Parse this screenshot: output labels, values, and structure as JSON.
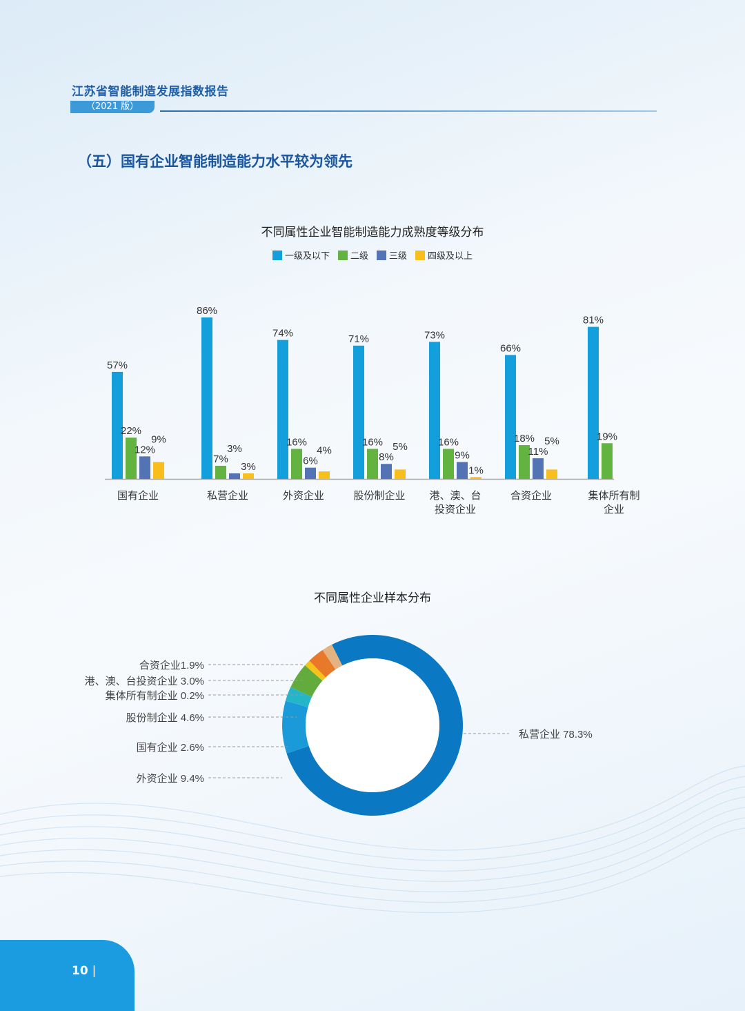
{
  "header": {
    "report_title": "江苏省智能制造发展指数报告",
    "edition": "（2021 版）"
  },
  "section_title": "（五）国有企业智能制造能力水平较为领先",
  "page_number": "10",
  "page_number_sep": "|",
  "chart_data": [
    {
      "type": "bar",
      "title": "不同属性企业智能制造能力成熟度等级分布",
      "legend_position": "top",
      "categories": [
        [
          "国有企业"
        ],
        [
          "私营企业"
        ],
        [
          "外资企业"
        ],
        [
          "股份制企业"
        ],
        [
          "港、澳、台",
          "投资企业"
        ],
        [
          "合资企业"
        ],
        [
          "集体所有制",
          "企业"
        ]
      ],
      "series": [
        {
          "name": "一级及以下",
          "color": "#139fdb",
          "values": [
            57,
            86,
            74,
            71,
            73,
            66,
            81
          ]
        },
        {
          "name": "二级",
          "color": "#62b33f",
          "values": [
            22,
            7,
            16,
            16,
            16,
            18,
            19
          ]
        },
        {
          "name": "三级",
          "color": "#5473b5",
          "values": [
            12,
            3,
            6,
            8,
            9,
            11,
            null
          ]
        },
        {
          "name": "四级及以上",
          "color": "#f7be1e",
          "values": [
            9,
            3,
            4,
            5,
            1,
            5,
            null
          ]
        }
      ],
      "ylim": [
        0,
        100
      ],
      "value_suffix": "%"
    },
    {
      "type": "pie",
      "donut": true,
      "title": "不同属性企业样本分布",
      "slices": [
        {
          "label": "私营企业",
          "value": 78.3,
          "text": "私营企业 78.3%",
          "color": "#0a78c2"
        },
        {
          "label": "外资企业",
          "value": 9.4,
          "text": "外资企业 9.4%",
          "color": "#1a9ad9"
        },
        {
          "label": "国有企业",
          "value": 2.6,
          "text": "国有企业 2.6%",
          "color": "#25b5c8"
        },
        {
          "label": "股份制企业",
          "value": 4.6,
          "text": "股份制企业 4.6%",
          "color": "#62ac3e"
        },
        {
          "label": "集体所有制企业",
          "value": 0.2,
          "text": "集体所有制企业 0.2%",
          "color": "#f7c21a"
        },
        {
          "label": "港、澳、台投资企业",
          "value": 3.0,
          "text": "港、澳、台投资企业 3.0%",
          "color": "#e8792a"
        },
        {
          "label": "合资企业",
          "value": 1.9,
          "text": "合资企业1.9%",
          "color": "#e5b282"
        }
      ]
    }
  ]
}
